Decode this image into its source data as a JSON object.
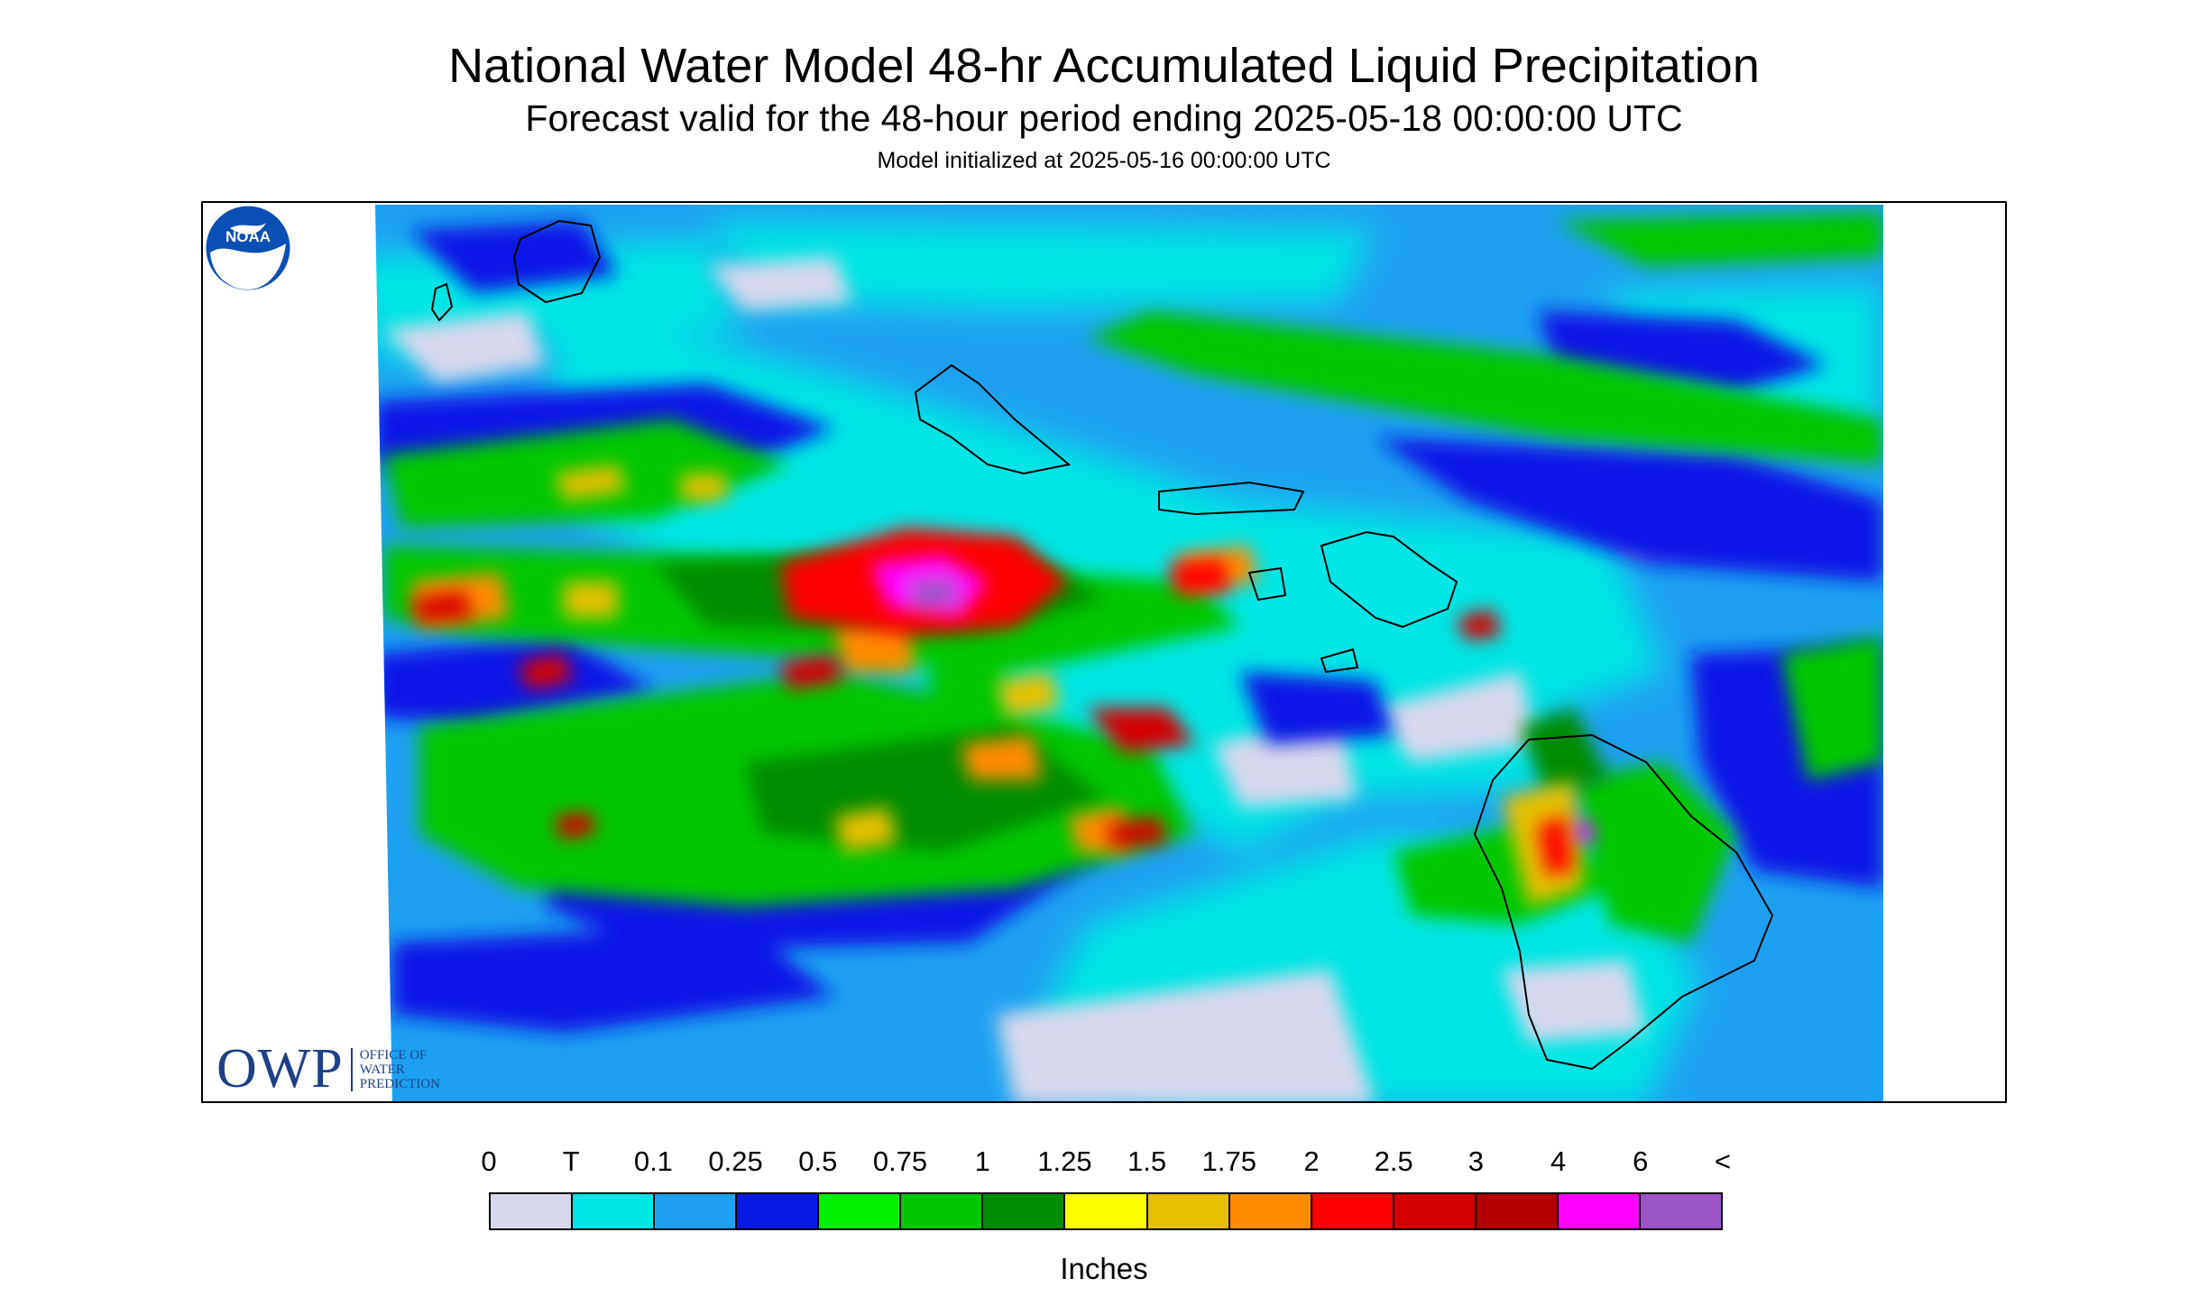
{
  "header": {
    "title": "National Water Model 48-hr Accumulated Liquid Precipitation",
    "subtitle": "Forecast valid for the 48-hour period ending 2025-05-18 00:00:00 UTC",
    "init": "Model initialized at 2025-05-16 00:00:00 UTC"
  },
  "logos": {
    "owp_mark": "OWP",
    "owp_lines": [
      "OFFICE OF",
      "WATER",
      "PREDICTION"
    ],
    "noaa": "NOAA"
  },
  "legend": {
    "labels": [
      "0",
      "T",
      "0.1",
      "0.25",
      "0.5",
      "0.75",
      "1",
      "1.25",
      "1.5",
      "1.75",
      "2",
      "2.5",
      "3",
      "4",
      "6",
      "<"
    ],
    "colors": [
      "#d8d8ec",
      "#00e5e5",
      "#1ea0f0",
      "#0a18e6",
      "#00f000",
      "#00c800",
      "#008c00",
      "#ffff00",
      "#e6c000",
      "#ff8c00",
      "#ff0000",
      "#d60000",
      "#b40000",
      "#ff00ff",
      "#9b55c8"
    ],
    "units": "Inches"
  },
  "map": {
    "region": "Hawaiian Islands",
    "islands": [
      "Kauai",
      "Niihau",
      "Oahu",
      "Molokai",
      "Lanai",
      "Maui",
      "Kahoolawe",
      "Hawaii"
    ]
  }
}
